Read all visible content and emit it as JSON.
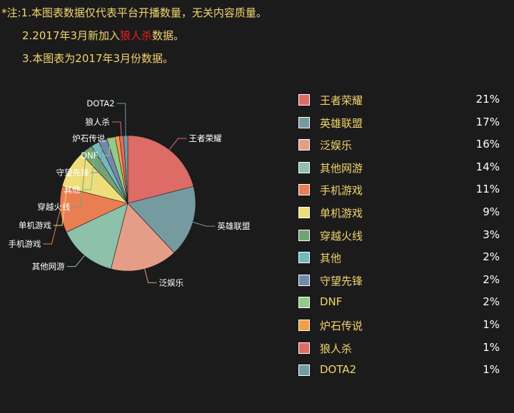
{
  "notes": {
    "line1": "*注:1.本图表数据仅代表平台开播数量，无关内容质量。",
    "line2_prefix": "2.2017年3月新加入",
    "line2_highlight": "狼人杀",
    "line2_suffix": "数据。",
    "line3": "3.本图表为2017年3月份数据。",
    "highlight_color": "#e82020",
    "text_color": "#f3d46e"
  },
  "chart_data": {
    "type": "pie",
    "title": "",
    "unit": "%",
    "legend_placement": "right",
    "slices": [
      {
        "name": "王者荣耀",
        "value": 21,
        "label": "21%",
        "color": "#dd6b66"
      },
      {
        "name": "英雄联盟",
        "value": 17,
        "label": "17%",
        "color": "#759aa0"
      },
      {
        "name": "泛娱乐",
        "value": 16,
        "label": "16%",
        "color": "#e69d87"
      },
      {
        "name": "其他网游",
        "value": 14,
        "label": "14%",
        "color": "#8dc1a9"
      },
      {
        "name": "手机游戏",
        "value": 11,
        "label": "11%",
        "color": "#ea7e53"
      },
      {
        "name": "单机游戏",
        "value": 9,
        "label": "9%",
        "color": "#eedd78"
      },
      {
        "name": "穿越火线",
        "value": 3,
        "label": "3%",
        "color": "#73a373"
      },
      {
        "name": "其他",
        "value": 2,
        "label": "2%",
        "color": "#73b9bc"
      },
      {
        "name": "守望先锋",
        "value": 2,
        "label": "2%",
        "color": "#7289ab"
      },
      {
        "name": "DNF",
        "value": 2,
        "label": "2%",
        "color": "#91ca8c"
      },
      {
        "name": "炉石传说",
        "value": 1,
        "label": "1%",
        "color": "#f49f42"
      },
      {
        "name": "狼人杀",
        "value": 1,
        "label": "1%",
        "color": "#dd6b66"
      },
      {
        "name": "DOTA2",
        "value": 1,
        "label": "1%",
        "color": "#759aa0"
      }
    ]
  }
}
